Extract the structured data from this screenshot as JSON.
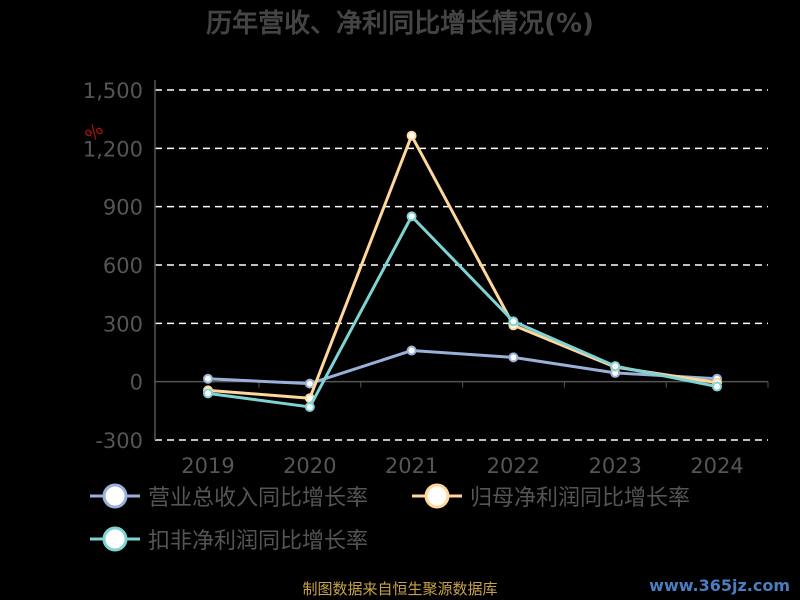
{
  "chart_data": {
    "type": "line",
    "title": "历年营收、净利同比增长情况(%)",
    "ylabel": "%",
    "categories": [
      "2019",
      "2020",
      "2021",
      "2022",
      "2023",
      "2024"
    ],
    "ylim": [
      -300,
      1500
    ],
    "yticks": [
      -300,
      0,
      300,
      600,
      900,
      1200,
      1500
    ],
    "ytick_labels": [
      "-300",
      "0",
      "300",
      "600",
      "900",
      "1,200",
      "1,500"
    ],
    "grid": true,
    "legend_position": "bottom",
    "series": [
      {
        "name": "营业总收入同比增长率",
        "color": "#9ab0d8",
        "values": [
          15,
          -10,
          160,
          125,
          45,
          15
        ]
      },
      {
        "name": "归母净利润同比增长率",
        "color": "#ffd79a",
        "values": [
          -45,
          -85,
          1265,
          290,
          75,
          -5
        ]
      },
      {
        "name": "扣非净利润同比增长率",
        "color": "#7fd3d3",
        "values": [
          -60,
          -130,
          850,
          310,
          80,
          -25
        ]
      }
    ]
  },
  "footer": "制图数据来自恒生聚源数据库",
  "watermark": "www.365jz.com"
}
